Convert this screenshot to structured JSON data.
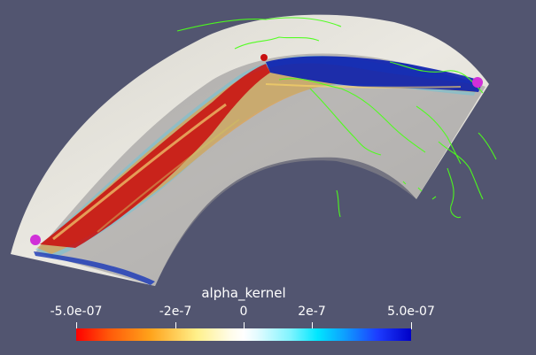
{
  "scalar_bar": {
    "title": "alpha_kernel",
    "ticks": [
      "-5.0e-07",
      "-2e-7",
      "0",
      "2e-7",
      "5.0e-07"
    ],
    "range": [
      -5e-07,
      5e-07
    ],
    "colormap": "red-yellow-white-cyan-blue",
    "colors": {
      "negative": "#ff0000",
      "zero": "#ffffff",
      "positive": "#0000c8"
    }
  },
  "scene": {
    "background": "#525570",
    "shell_color": "#e7e5dd",
    "coastline_color": "#4cff1a",
    "source_marker_color": "#d030d8",
    "positive_lobe_color": "#0a1fb0",
    "negative_lobe_color": "#c81010"
  }
}
